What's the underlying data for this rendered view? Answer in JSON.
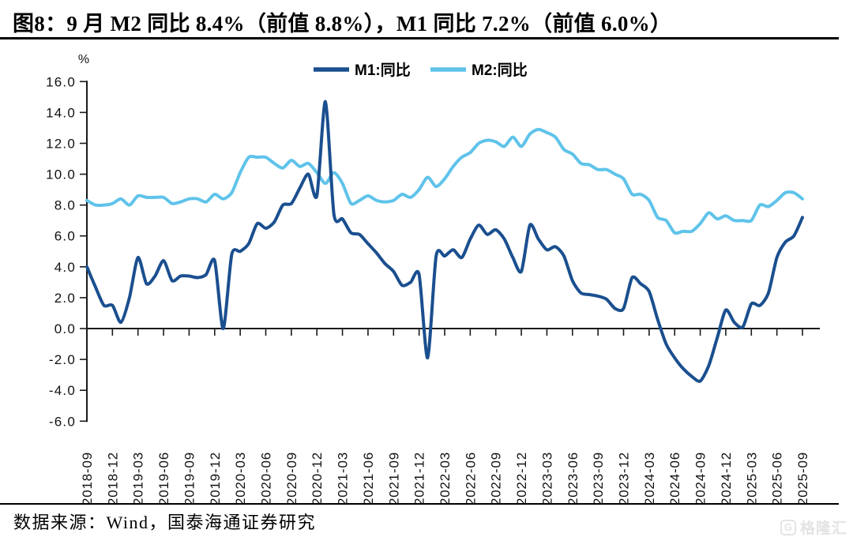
{
  "panel": {
    "title": "图8：9 月 M2 同比 8.4%（前值 8.8%），M1 同比 7.2%（前值 6.0%）",
    "source_note": "数据来源：Wind，国泰海通证券研究"
  },
  "watermark": {
    "logo_letter": "G",
    "brand": "格隆汇"
  },
  "chart_data": {
    "type": "line",
    "unit_label": "%",
    "ylim": [
      -6.0,
      16.0
    ],
    "ytick_step": 2.0,
    "y_tick_labels": [
      "16.0",
      "14.0",
      "12.0",
      "10.0",
      "8.0",
      "6.0",
      "4.0",
      "2.0",
      "0.0",
      "-2.0",
      "-4.0",
      "-6.0"
    ],
    "x_frequency": "monthly",
    "x_range": [
      "2018-09",
      "2025-09"
    ],
    "x_tick_labels": [
      "2018-09",
      "2018-12",
      "2019-03",
      "2019-06",
      "2019-09",
      "2019-12",
      "2020-03",
      "2020-06",
      "2020-09",
      "2020-12",
      "2021-03",
      "2021-06",
      "2021-09",
      "2021-12",
      "2022-03",
      "2022-06",
      "2022-09",
      "2022-12",
      "2023-03",
      "2023-06",
      "2023-09",
      "2023-12",
      "2024-03",
      "2024-06",
      "2024-09",
      "2024-12",
      "2025-03",
      "2025-06",
      "2025-09"
    ],
    "grid": false,
    "legend_position": "top-center",
    "axis_color": "#1a1a1a",
    "series": [
      {
        "id": "m1",
        "name": "M1:同比",
        "color": "#1a4f8f",
        "values": [
          4.0,
          2.7,
          1.5,
          1.5,
          0.4,
          2.0,
          4.6,
          2.9,
          3.4,
          4.4,
          3.1,
          3.4,
          3.4,
          3.3,
          3.5,
          4.4,
          0.0,
          4.8,
          5.0,
          5.5,
          6.8,
          6.5,
          6.9,
          8.0,
          8.1,
          9.1,
          10.0,
          8.6,
          14.7,
          7.4,
          7.1,
          6.2,
          6.1,
          5.5,
          4.9,
          4.2,
          3.7,
          2.8,
          3.0,
          3.5,
          -1.9,
          4.7,
          4.7,
          5.1,
          4.6,
          5.8,
          6.7,
          6.1,
          6.4,
          5.8,
          4.6,
          3.7,
          6.7,
          5.8,
          5.1,
          5.3,
          4.7,
          3.1,
          2.3,
          2.2,
          2.1,
          1.9,
          1.3,
          1.3,
          3.3,
          2.9,
          2.4,
          0.6,
          -1.0,
          -1.9,
          -2.6,
          -3.1,
          -3.4,
          -2.4,
          -0.6,
          1.2,
          0.4,
          0.1,
          1.6,
          1.5,
          2.3,
          4.6,
          5.6,
          6.0,
          7.2
        ]
      },
      {
        "id": "m2",
        "name": "M2:同比",
        "color": "#5fc3ea",
        "values": [
          8.3,
          8.0,
          8.0,
          8.1,
          8.4,
          8.0,
          8.6,
          8.5,
          8.5,
          8.5,
          8.1,
          8.2,
          8.4,
          8.4,
          8.2,
          8.7,
          8.4,
          8.8,
          10.1,
          11.1,
          11.1,
          11.1,
          10.7,
          10.4,
          10.9,
          10.5,
          10.7,
          10.1,
          9.4,
          10.1,
          9.4,
          8.1,
          8.3,
          8.6,
          8.3,
          8.2,
          8.3,
          8.7,
          8.5,
          9.0,
          9.8,
          9.2,
          9.7,
          10.5,
          11.1,
          11.4,
          12.0,
          12.2,
          12.1,
          11.8,
          12.4,
          11.8,
          12.6,
          12.9,
          12.7,
          12.4,
          11.6,
          11.3,
          10.7,
          10.6,
          10.3,
          10.3,
          10.0,
          9.7,
          8.7,
          8.7,
          8.3,
          7.2,
          7.0,
          6.2,
          6.3,
          6.3,
          6.8,
          7.5,
          7.1,
          7.3,
          7.0,
          7.0,
          7.0,
          8.0,
          7.9,
          8.3,
          8.8,
          8.8,
          8.4
        ]
      }
    ]
  }
}
